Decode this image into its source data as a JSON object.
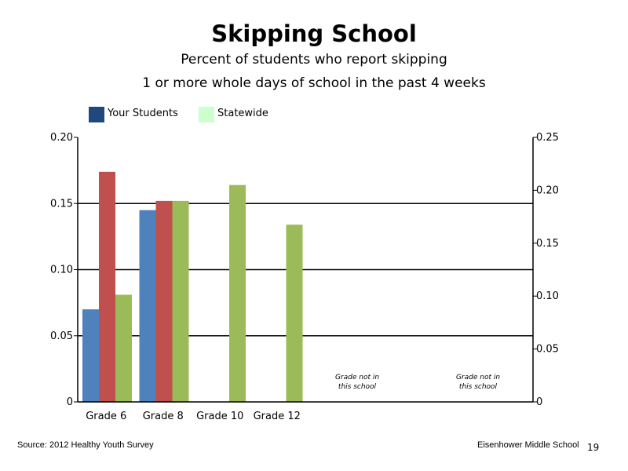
{
  "chart_data": {
    "type": "bar",
    "title": "Skipping School",
    "subtitle_lines": [
      "Percent of students who report skipping",
      "1 or more whole days of school in the past 4 weeks"
    ],
    "categories": [
      "Grade 6",
      "Grade 8",
      "Grade 10",
      "Grade 12"
    ],
    "series": [
      {
        "values": [
          0.07,
          0.145,
          null,
          null
        ],
        "color": "#4f81bd"
      },
      {
        "values": [
          0.174,
          0.152,
          null,
          null
        ],
        "color": "#c0504d"
      },
      {
        "values": [
          0.081,
          0.152,
          0.164,
          0.134
        ],
        "color": "#9bbb59"
      }
    ],
    "legend": {
      "placement": "top-left",
      "entries": [
        {
          "label": "Your Students",
          "color": "#1f497d"
        },
        {
          "label": "Statewide",
          "color": "#ccffcc"
        }
      ]
    },
    "ylim_left": [
      0,
      0.2
    ],
    "yticks_left": [
      "0",
      "0.05",
      "0.10",
      "0.15",
      "0.20"
    ],
    "ylim_right": [
      0,
      0.25
    ],
    "yticks_right": [
      "0",
      "0.05",
      "0.10",
      "0.15",
      "0.20",
      "0.25"
    ],
    "gridlines": [
      0.05,
      0.1,
      0.15
    ],
    "empty_slot_notes": [
      [
        "Grade not in",
        "this school"
      ],
      [
        "Grade not in",
        "this school"
      ]
    ]
  },
  "footer": {
    "source": "Source: 2012 Healthy Youth Survey",
    "school": "Eisenhower Middle  School",
    "page_number": "19"
  }
}
